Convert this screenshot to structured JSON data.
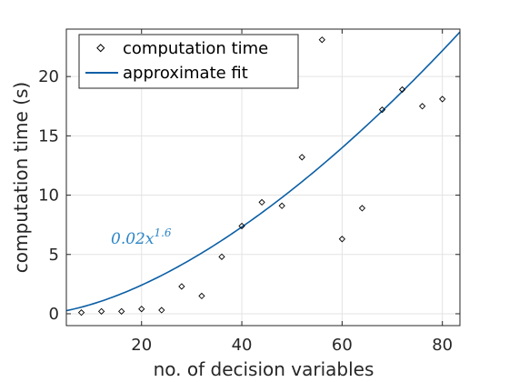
{
  "chart_data": {
    "type": "scatter",
    "xlabel": "no. of decision variables",
    "ylabel": "computation time (s)",
    "xlim": [
      5,
      83.5
    ],
    "ylim": [
      -1,
      24
    ],
    "xticks": [
      20,
      40,
      60,
      80
    ],
    "yticks": [
      0,
      5,
      10,
      15,
      20
    ],
    "grid": true,
    "legend_position": "top-left",
    "series": [
      {
        "name": "computation time",
        "kind": "markers",
        "marker": "diamond",
        "color": "#000000",
        "x": [
          8,
          12,
          16,
          20,
          24,
          28,
          32,
          36,
          40,
          44,
          48,
          52,
          56,
          60,
          64,
          68,
          72,
          76,
          80
        ],
        "y": [
          0.1,
          0.2,
          0.2,
          0.4,
          0.3,
          2.3,
          1.5,
          4.8,
          7.4,
          9.4,
          9.1,
          13.2,
          23.1,
          6.3,
          8.9,
          17.2,
          18.9,
          17.5,
          18.1
        ]
      },
      {
        "name": "approximate fit",
        "kind": "line",
        "color": "#0b5fa5",
        "coef": 0.02,
        "exponent": 1.6,
        "x_range": [
          5,
          83.5
        ]
      }
    ],
    "annotation": {
      "coef_text": "0.02",
      "var_text": "x",
      "exp_text": "1.6",
      "color": "#2e86c7",
      "at": [
        13,
        6
      ]
    }
  }
}
